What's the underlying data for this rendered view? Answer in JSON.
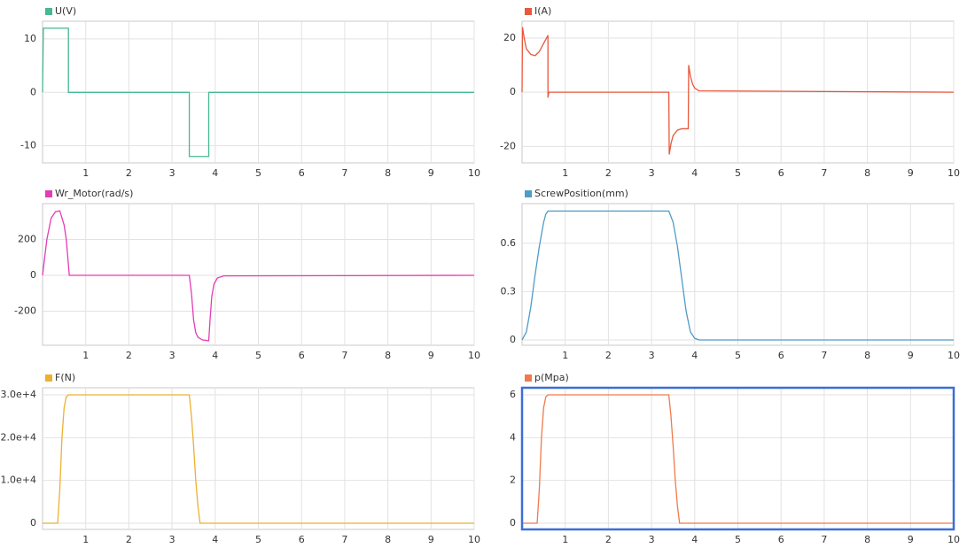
{
  "chart_data": [
    {
      "type": "line",
      "title": "U(V)",
      "x": [
        0,
        0.02,
        0.6,
        0.6,
        3.4,
        3.4,
        3.85,
        3.85,
        10
      ],
      "series": [
        {
          "name": "U(V)",
          "color": "#45b98f",
          "values": [
            0,
            12,
            12,
            0,
            0,
            -12,
            -12,
            0,
            0
          ]
        }
      ],
      "xlim": [
        0,
        10
      ],
      "xticks": [
        1,
        2,
        3,
        4,
        5,
        6,
        7,
        8,
        9,
        10
      ],
      "ylim": [
        -13.2,
        13.3
      ],
      "yticks": [
        -10,
        0,
        10
      ],
      "grid": true
    },
    {
      "type": "line",
      "title": "I(A)",
      "x": [
        0,
        0.01,
        0.05,
        0.1,
        0.2,
        0.3,
        0.4,
        0.5,
        0.6,
        0.6,
        0.62,
        0.65,
        3.4,
        3.41,
        3.45,
        3.5,
        3.6,
        3.7,
        3.85,
        3.86,
        3.9,
        3.95,
        4.0,
        4.1,
        10
      ],
      "series": [
        {
          "name": "I(A)",
          "color": "#e8583c",
          "values": [
            0,
            24,
            20,
            16,
            14,
            13.5,
            15,
            18,
            21,
            -2,
            0,
            0,
            0,
            -23,
            -19,
            -16,
            -14,
            -13.5,
            -13.5,
            10,
            6,
            3,
            1.5,
            0.5,
            0
          ]
        }
      ],
      "xlim": [
        0,
        10
      ],
      "xticks": [
        1,
        2,
        3,
        4,
        5,
        6,
        7,
        8,
        9,
        10
      ],
      "ylim": [
        -26.1,
        26.2
      ],
      "yticks": [
        -20,
        0,
        20
      ],
      "grid": true
    },
    {
      "type": "line",
      "title": "Wr_Motor(rad/s)",
      "x": [
        0,
        0.1,
        0.2,
        0.3,
        0.4,
        0.5,
        0.55,
        0.62,
        3.4,
        3.45,
        3.5,
        3.55,
        3.6,
        3.7,
        3.85,
        3.88,
        3.92,
        3.97,
        4.05,
        4.2,
        10
      ],
      "series": [
        {
          "name": "Wr_Motor(rad/s)",
          "color": "#e43cb6",
          "values": [
            0,
            200,
            320,
            355,
            360,
            280,
            200,
            0,
            0,
            -100,
            -250,
            -320,
            -345,
            -360,
            -365,
            -250,
            -120,
            -50,
            -15,
            -3,
            0
          ]
        }
      ],
      "xlim": [
        0,
        10
      ],
      "xticks": [
        1,
        2,
        3,
        4,
        5,
        6,
        7,
        8,
        9,
        10
      ],
      "ylim": [
        -390,
        400
      ],
      "yticks": [
        -200,
        0,
        200
      ],
      "grid": true
    },
    {
      "type": "line",
      "title": "ScrewPosition(mm)",
      "x": [
        0,
        0.1,
        0.2,
        0.3,
        0.4,
        0.5,
        0.55,
        0.6,
        3.4,
        3.5,
        3.6,
        3.7,
        3.8,
        3.9,
        4.0,
        4.1,
        10
      ],
      "series": [
        {
          "name": "ScrewPosition(mm)",
          "color": "#4f9cc6",
          "values": [
            0,
            0.05,
            0.2,
            0.4,
            0.58,
            0.73,
            0.78,
            0.8,
            0.8,
            0.73,
            0.58,
            0.38,
            0.18,
            0.05,
            0.01,
            0,
            0
          ]
        }
      ],
      "xlim": [
        0,
        10
      ],
      "xticks": [
        1,
        2,
        3,
        4,
        5,
        6,
        7,
        8,
        9,
        10
      ],
      "ylim": [
        -0.033,
        0.846
      ],
      "yticks": [
        0,
        0.3,
        0.6
      ],
      "grid": true
    },
    {
      "type": "line",
      "title": "F(N)",
      "x": [
        0,
        0.35,
        0.4,
        0.45,
        0.5,
        0.55,
        0.6,
        3.4,
        3.45,
        3.5,
        3.55,
        3.6,
        3.65,
        10
      ],
      "series": [
        {
          "name": "F(N)",
          "color": "#ebb132",
          "values": [
            0,
            0,
            8000,
            20000,
            27000,
            29500,
            30000,
            30000,
            25000,
            18000,
            10000,
            4000,
            0,
            0
          ]
        }
      ],
      "xlim": [
        0,
        10
      ],
      "xticks": [
        1,
        2,
        3,
        4,
        5,
        6,
        7,
        8,
        9,
        10
      ],
      "ylim": [
        -1450,
        31650
      ],
      "yticks": [
        0,
        {
          "value": 10000,
          "label": "1.0e+4"
        },
        {
          "value": 20000,
          "label": "2.0e+4"
        },
        {
          "value": 30000,
          "label": "3.0e+4"
        }
      ],
      "grid": true
    },
    {
      "type": "line",
      "title": "p(Mpa)",
      "x": [
        0,
        0.35,
        0.4,
        0.45,
        0.5,
        0.55,
        0.6,
        3.4,
        3.45,
        3.5,
        3.55,
        3.6,
        3.65,
        10
      ],
      "series": [
        {
          "name": "p(Mpa)",
          "color": "#f07a4c",
          "values": [
            0,
            0,
            1.6,
            4,
            5.4,
            5.9,
            6,
            6,
            5,
            3.6,
            2,
            0.8,
            0,
            0
          ]
        }
      ],
      "xlim": [
        0,
        10
      ],
      "xticks": [
        1,
        2,
        3,
        4,
        5,
        6,
        7,
        8,
        9,
        10
      ],
      "ylim": [
        -0.29,
        6.33
      ],
      "yticks": [
        0,
        2,
        4,
        6
      ],
      "grid": true
    }
  ]
}
